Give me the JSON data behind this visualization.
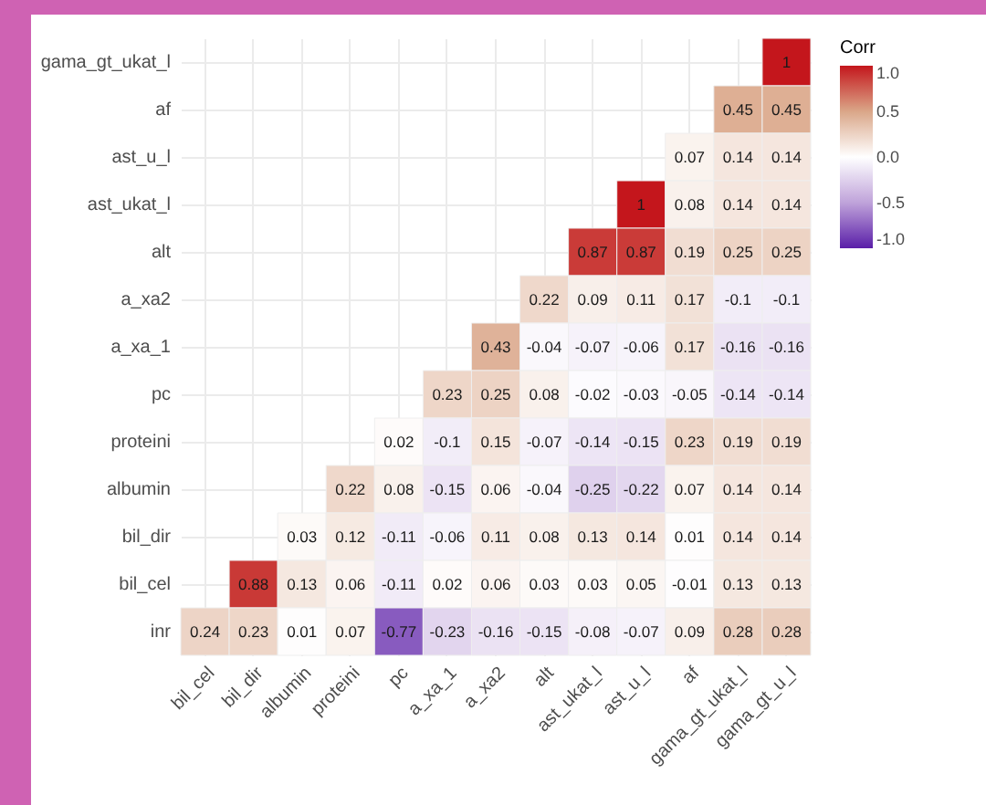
{
  "chart_data": {
    "type": "heatmap",
    "clabel": "Corr",
    "grid": true,
    "data_labels": true,
    "categories": [
      "bil_cel",
      "bil_dir",
      "albumin",
      "proteini",
      "pc",
      "a_xa_1",
      "a_xa2",
      "alt",
      "ast_ukat_l",
      "ast_u_l",
      "af",
      "gama_gt_ukat_l",
      "gama_gt_u_l"
    ],
    "y_categories": [
      "gama_gt_ukat_l",
      "af",
      "ast_u_l",
      "ast_ukat_l",
      "alt",
      "a_xa2",
      "a_xa_1",
      "pc",
      "proteini",
      "albumin",
      "bil_dir",
      "bil_cel",
      "inr"
    ],
    "cells": [
      [
        null,
        null,
        null,
        null,
        null,
        null,
        null,
        null,
        null,
        null,
        null,
        null,
        1
      ],
      [
        null,
        null,
        null,
        null,
        null,
        null,
        null,
        null,
        null,
        null,
        null,
        0.45,
        0.45
      ],
      [
        null,
        null,
        null,
        null,
        null,
        null,
        null,
        null,
        null,
        null,
        0.07,
        0.14,
        0.14
      ],
      [
        null,
        null,
        null,
        null,
        null,
        null,
        null,
        null,
        null,
        1,
        0.08,
        0.14,
        0.14
      ],
      [
        null,
        null,
        null,
        null,
        null,
        null,
        null,
        null,
        0.87,
        0.87,
        0.19,
        0.25,
        0.25
      ],
      [
        null,
        null,
        null,
        null,
        null,
        null,
        null,
        0.22,
        0.09,
        0.11,
        0.17,
        -0.1,
        -0.1
      ],
      [
        null,
        null,
        null,
        null,
        null,
        null,
        0.43,
        -0.04,
        -0.07,
        -0.06,
        0.17,
        -0.16,
        -0.16
      ],
      [
        null,
        null,
        null,
        null,
        null,
        0.23,
        0.25,
        0.08,
        -0.02,
        -0.03,
        -0.05,
        -0.14,
        -0.14
      ],
      [
        null,
        null,
        null,
        null,
        0.02,
        -0.1,
        0.15,
        -0.07,
        -0.14,
        -0.15,
        0.23,
        0.19,
        0.19
      ],
      [
        null,
        null,
        null,
        0.22,
        0.08,
        -0.15,
        0.06,
        -0.04,
        -0.25,
        -0.22,
        0.07,
        0.14,
        0.14
      ],
      [
        null,
        null,
        0.03,
        0.12,
        -0.11,
        -0.06,
        0.11,
        0.08,
        0.13,
        0.14,
        0.01,
        0.14,
        0.14
      ],
      [
        null,
        0.88,
        0.13,
        0.06,
        -0.11,
        0.02,
        0.06,
        0.03,
        0.03,
        0.05,
        -0.01,
        0.13,
        0.13
      ],
      [
        0.24,
        0.23,
        0.01,
        0.07,
        -0.77,
        -0.23,
        -0.16,
        -0.15,
        -0.08,
        -0.07,
        0.09,
        0.28,
        0.28
      ]
    ],
    "clim": [
      -1,
      1
    ],
    "cticks": [
      {
        "value": -1,
        "label": "-1.0"
      },
      {
        "value": -0.5,
        "label": "-0.5"
      },
      {
        "value": 0,
        "label": "0.0"
      },
      {
        "value": 0.5,
        "label": "0.5"
      },
      {
        "value": 1,
        "label": "1.0"
      }
    ]
  }
}
